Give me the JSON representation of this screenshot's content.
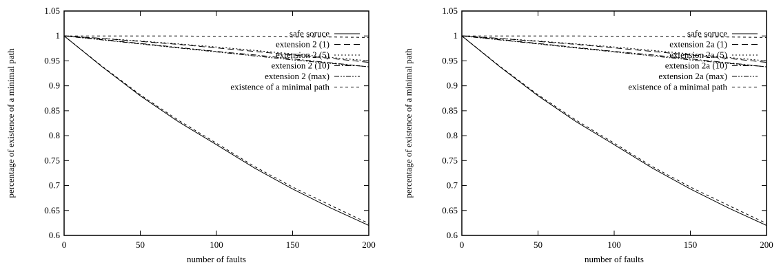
{
  "chart_data": [
    {
      "type": "line",
      "xlabel": "number of faults",
      "ylabel": "percentage of existence of a minimal path",
      "xlim": [
        0,
        200
      ],
      "ylim": [
        0.6,
        1.05
      ],
      "x_ticks": [
        "0",
        "50",
        "100",
        "150",
        "200"
      ],
      "y_ticks": [
        "0.6",
        "0.65",
        "0.7",
        "0.75",
        "0.8",
        "0.85",
        "0.9",
        "0.95",
        "1",
        "1.05"
      ],
      "grid": false,
      "legend_position": "top-right",
      "series": [
        {
          "name": "safe soruce",
          "dash": "solid",
          "x": [
            0,
            25,
            50,
            75,
            100,
            125,
            150,
            175,
            200
          ],
          "y": [
            1.0,
            0.938,
            0.88,
            0.828,
            0.782,
            0.735,
            0.693,
            0.655,
            0.62
          ]
        },
        {
          "name": "extension 2 (1)",
          "dash": "long",
          "x": [
            0,
            25,
            50,
            75,
            100,
            125,
            150,
            175,
            200
          ],
          "y": [
            1.0,
            0.995,
            0.989,
            0.983,
            0.976,
            0.969,
            0.962,
            0.955,
            0.947
          ]
        },
        {
          "name": "extension 2 (5)",
          "dash": "dot",
          "x": [
            0,
            25,
            50,
            75,
            100,
            125,
            150,
            175,
            200
          ],
          "y": [
            1.0,
            0.995,
            0.99,
            0.984,
            0.978,
            0.971,
            0.964,
            0.957,
            0.95
          ]
        },
        {
          "name": "extension 2 (10)",
          "dash": "dashdot",
          "x": [
            0,
            25,
            50,
            75,
            100,
            125,
            150,
            175,
            200
          ],
          "y": [
            1.0,
            0.993,
            0.985,
            0.977,
            0.969,
            0.962,
            0.954,
            0.946,
            0.938
          ]
        },
        {
          "name": "extension 2 (max)",
          "dash": "dashdotdot",
          "x": [
            0,
            25,
            50,
            75,
            100,
            125,
            150,
            175,
            200
          ],
          "y": [
            1.0,
            0.992,
            0.984,
            0.976,
            0.968,
            0.96,
            0.952,
            0.945,
            0.938
          ]
        },
        {
          "name": "existence of a minimal path",
          "dash": "short",
          "x": [
            0,
            25,
            50,
            75,
            100,
            125,
            150,
            175,
            200
          ],
          "y": [
            1.0,
            1.0,
            1.0,
            1.0,
            0.999,
            0.999,
            0.998,
            0.998,
            0.997
          ]
        },
        {
          "name": "",
          "dash": "short",
          "x": [
            0,
            25,
            50,
            75,
            100,
            125,
            150,
            175,
            200
          ],
          "y": [
            1.0,
            0.939,
            0.882,
            0.831,
            0.785,
            0.738,
            0.697,
            0.66,
            0.624
          ]
        }
      ]
    },
    {
      "type": "line",
      "xlabel": "number of faults",
      "ylabel": "percentage of existence of a minimal path",
      "xlim": [
        0,
        200
      ],
      "ylim": [
        0.6,
        1.05
      ],
      "x_ticks": [
        "0",
        "50",
        "100",
        "150",
        "200"
      ],
      "y_ticks": [
        "0.6",
        "0.65",
        "0.7",
        "0.75",
        "0.8",
        "0.85",
        "0.9",
        "0.95",
        "1",
        "1.05"
      ],
      "grid": false,
      "legend_position": "top-right",
      "series": [
        {
          "name": "safe soruce",
          "dash": "solid",
          "x": [
            0,
            25,
            50,
            75,
            100,
            125,
            150,
            175,
            200
          ],
          "y": [
            1.0,
            0.938,
            0.88,
            0.828,
            0.782,
            0.735,
            0.693,
            0.655,
            0.62
          ]
        },
        {
          "name": "extension 2a (1)",
          "dash": "long",
          "x": [
            0,
            25,
            50,
            75,
            100,
            125,
            150,
            175,
            200
          ],
          "y": [
            1.0,
            0.995,
            0.989,
            0.983,
            0.976,
            0.969,
            0.962,
            0.955,
            0.947
          ]
        },
        {
          "name": "extension 2a (5)",
          "dash": "dot",
          "x": [
            0,
            25,
            50,
            75,
            100,
            125,
            150,
            175,
            200
          ],
          "y": [
            1.0,
            0.995,
            0.99,
            0.984,
            0.978,
            0.971,
            0.964,
            0.957,
            0.95
          ]
        },
        {
          "name": "extension 2a (10)",
          "dash": "dashdot",
          "x": [
            0,
            25,
            50,
            75,
            100,
            125,
            150,
            175,
            200
          ],
          "y": [
            1.0,
            0.993,
            0.985,
            0.977,
            0.969,
            0.962,
            0.954,
            0.946,
            0.938
          ]
        },
        {
          "name": "extension 2a (max)",
          "dash": "dashdotdot",
          "x": [
            0,
            25,
            50,
            75,
            100,
            125,
            150,
            175,
            200
          ],
          "y": [
            1.0,
            0.992,
            0.984,
            0.976,
            0.968,
            0.96,
            0.952,
            0.945,
            0.938
          ]
        },
        {
          "name": "existence of a minimal path",
          "dash": "short",
          "x": [
            0,
            25,
            50,
            75,
            100,
            125,
            150,
            175,
            200
          ],
          "y": [
            1.0,
            1.0,
            1.0,
            1.0,
            0.999,
            0.999,
            0.998,
            0.998,
            0.997
          ]
        },
        {
          "name": "",
          "dash": "short",
          "x": [
            0,
            25,
            50,
            75,
            100,
            125,
            150,
            175,
            200
          ],
          "y": [
            1.0,
            0.939,
            0.882,
            0.831,
            0.785,
            0.738,
            0.697,
            0.66,
            0.624
          ]
        }
      ]
    }
  ]
}
